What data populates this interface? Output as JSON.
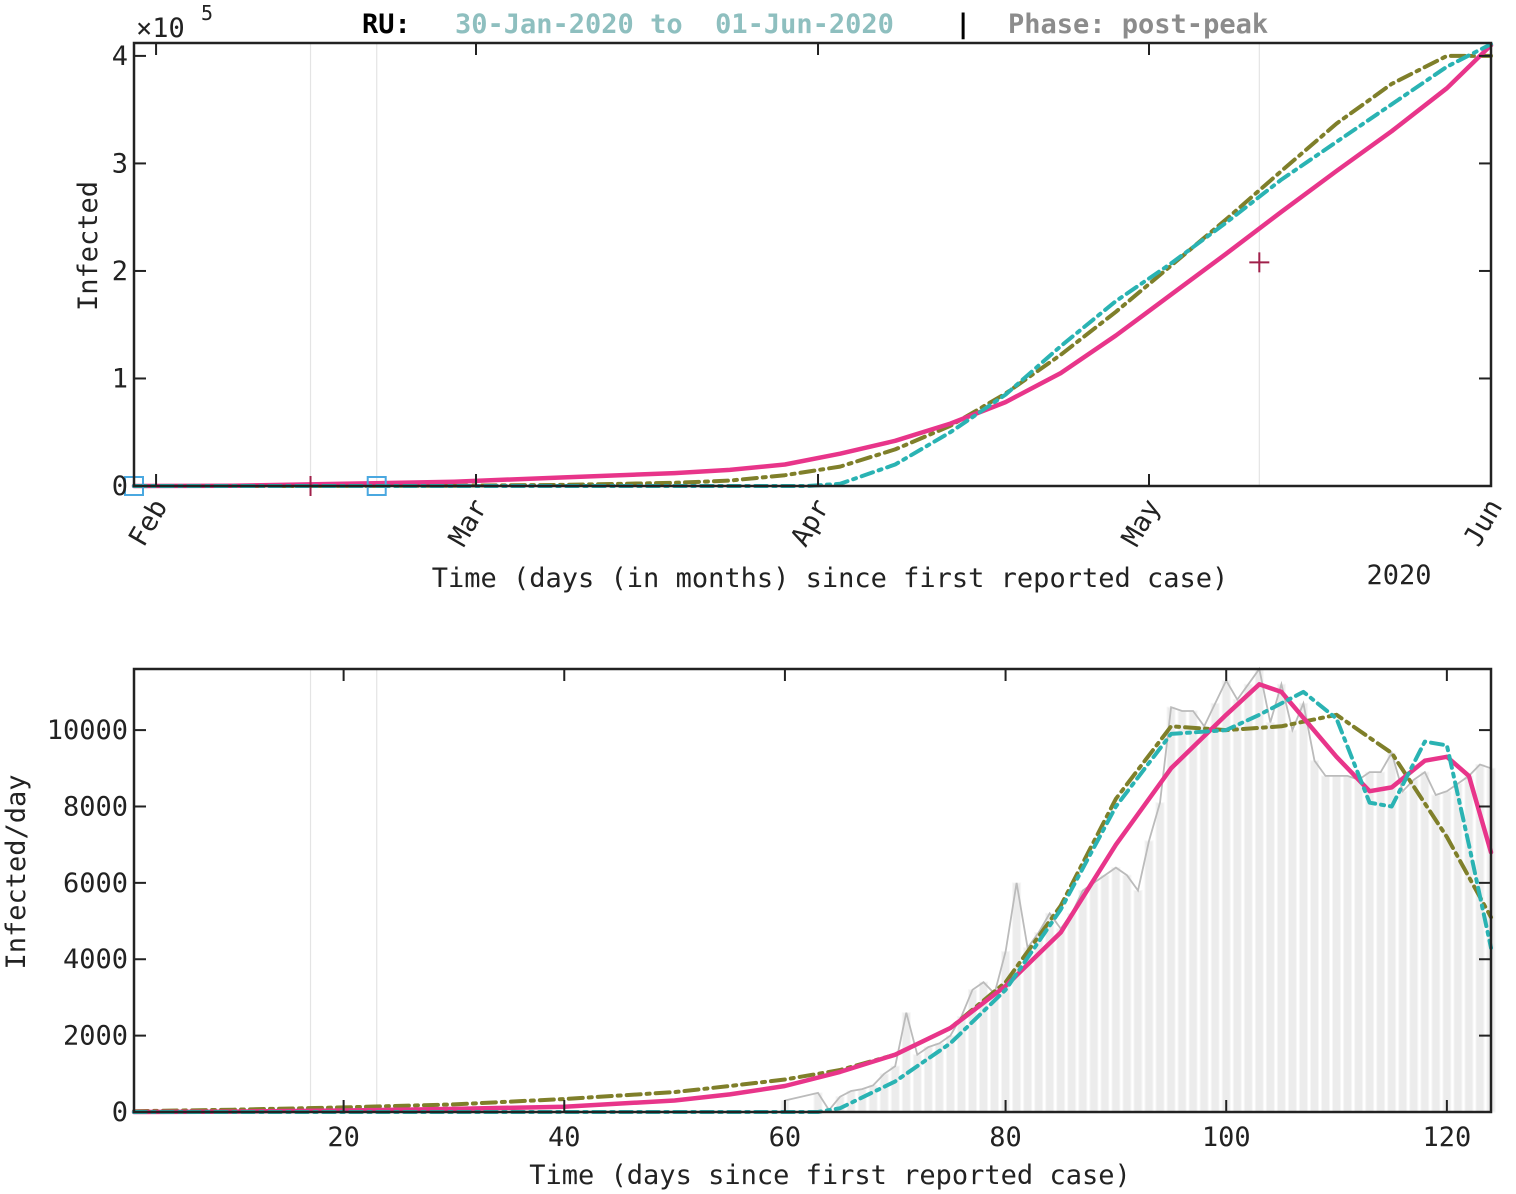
{
  "header": {
    "country": "RU:",
    "date_range": "30-Jan-2020 to  01-Jun-2020",
    "separator": "|",
    "phase": "Phase: post-peak"
  },
  "colors": {
    "magenta": "#e8358a",
    "teal": "#2ab3b3",
    "olive": "#7f7f2a",
    "gray": "#bbbbbb",
    "bar": "#ececec",
    "header_date": "#8ebfbf",
    "header_phase": "#8c8c8c",
    "marker": "#4aa8e0"
  },
  "chart_data": [
    {
      "type": "line",
      "ylabel": "Infected",
      "xlabel": "Time (days (in months) since first reported case)",
      "exponent_label": "×10",
      "exponent_power": "5",
      "year_label": "2020",
      "ylim": [
        0,
        4.12
      ],
      "xlim": [
        1,
        124
      ],
      "yticks": [
        "0",
        "1",
        "2",
        "3",
        "4"
      ],
      "month_ticks": [
        {
          "day": 3,
          "label": "Feb"
        },
        {
          "day": 32,
          "label": "Mar"
        },
        {
          "day": 63,
          "label": "Apr"
        },
        {
          "day": 93,
          "label": "May"
        },
        {
          "day": 124,
          "label": "Jun"
        }
      ],
      "grid_days": [
        17,
        23,
        103
      ],
      "markers": [
        {
          "day": 1,
          "value": 0,
          "shape": "square"
        },
        {
          "day": 23,
          "value": 0,
          "shape": "square"
        },
        {
          "day": 17,
          "value": 0,
          "shape": "tick"
        },
        {
          "day": 103,
          "value": 2.08,
          "shape": "plus"
        }
      ],
      "series": [
        {
          "x": [
            1,
            10,
            20,
            30,
            40,
            50,
            55,
            60,
            65,
            70,
            75,
            80,
            85,
            90,
            95,
            100,
            105,
            110,
            115,
            120,
            124
          ],
          "values": [
            0,
            0.003,
            0.02,
            0.04,
            0.08,
            0.12,
            0.15,
            0.2,
            0.3,
            0.42,
            0.58,
            0.78,
            1.05,
            1.4,
            1.78,
            2.16,
            2.55,
            2.93,
            3.3,
            3.7,
            4.1
          ]
        },
        {
          "x": [
            1,
            10,
            20,
            30,
            40,
            50,
            55,
            60,
            62,
            65,
            70,
            75,
            80,
            85,
            90,
            95,
            100,
            105,
            110,
            115,
            120,
            124
          ],
          "values": [
            0,
            0,
            0,
            0,
            0,
            0,
            0,
            0,
            0,
            0.02,
            0.2,
            0.5,
            0.85,
            1.3,
            1.72,
            2.07,
            2.45,
            2.85,
            3.2,
            3.55,
            3.9,
            4.11
          ]
        },
        {
          "x": [
            1,
            10,
            20,
            30,
            40,
            50,
            55,
            60,
            65,
            70,
            75,
            80,
            85,
            90,
            95,
            100,
            105,
            110,
            115,
            120,
            124
          ],
          "values": [
            0,
            0,
            0.001,
            0.003,
            0.01,
            0.03,
            0.05,
            0.1,
            0.18,
            0.34,
            0.56,
            0.86,
            1.22,
            1.62,
            2.05,
            2.48,
            2.93,
            3.37,
            3.74,
            4.0,
            4.0
          ]
        }
      ]
    },
    {
      "type": "line",
      "ylabel": "Infected/day",
      "xlabel": "Time (days since first reported case)",
      "ylim": [
        0,
        11600
      ],
      "xlim": [
        1,
        124
      ],
      "yticks": [
        0,
        2000,
        4000,
        6000,
        8000,
        10000
      ],
      "xticks": [
        20,
        40,
        60,
        80,
        100,
        120
      ],
      "grid_days": [
        17,
        23
      ],
      "raw_daily": {
        "x": [
          60,
          63,
          64,
          65,
          66,
          67,
          68,
          69,
          70,
          71,
          72,
          73,
          74,
          75,
          76,
          77,
          78,
          79,
          80,
          81,
          82,
          83,
          84,
          85,
          86,
          87,
          88,
          89,
          90,
          91,
          92,
          93,
          94,
          95,
          96,
          97,
          98,
          99,
          100,
          101,
          102,
          103,
          104,
          105,
          106,
          107,
          108,
          109,
          110,
          111,
          112,
          113,
          114,
          115,
          116,
          117,
          118,
          119,
          120,
          121,
          122,
          123,
          124
        ],
        "values": [
          300,
          500,
          50,
          400,
          550,
          600,
          700,
          1000,
          1200,
          2600,
          1500,
          1700,
          1800,
          2000,
          2500,
          3200,
          3400,
          3100,
          4200,
          6000,
          4300,
          4700,
          5200,
          4800,
          5200,
          5800,
          6000,
          6200,
          6400,
          6200,
          5800,
          7100,
          8100,
          10600,
          10500,
          10500,
          10100,
          10700,
          11300,
          10800,
          11200,
          11600,
          10200,
          11200,
          10000,
          10700,
          9200,
          8800,
          8800,
          8800,
          8700,
          8900,
          8900,
          9400,
          8400,
          8700,
          8900,
          8300,
          8400,
          8600,
          8800,
          9100,
          9000
        ]
      },
      "series": [
        {
          "x": [
            1,
            10,
            20,
            30,
            40,
            50,
            55,
            60,
            65,
            70,
            75,
            80,
            85,
            90,
            95,
            100,
            103,
            105,
            110,
            113,
            115,
            118,
            120,
            122,
            124
          ],
          "values": [
            0,
            10,
            40,
            80,
            140,
            300,
            460,
            680,
            1050,
            1500,
            2200,
            3300,
            4700,
            7000,
            9000,
            10400,
            11200,
            11000,
            9300,
            8400,
            8500,
            9200,
            9300,
            8800,
            6800
          ]
        },
        {
          "x": [
            1,
            10,
            20,
            30,
            40,
            50,
            55,
            60,
            63,
            65,
            70,
            75,
            80,
            85,
            90,
            95,
            100,
            103,
            107,
            110,
            113,
            115,
            118,
            120,
            122,
            124
          ],
          "values": [
            0,
            0,
            0,
            0,
            0,
            0,
            0,
            0,
            0,
            100,
            800,
            1800,
            3200,
            5300,
            8000,
            9900,
            10000,
            10400,
            11000,
            10300,
            8100,
            8000,
            9700,
            9600,
            7000,
            4300
          ]
        },
        {
          "x": [
            1,
            10,
            20,
            30,
            40,
            50,
            55,
            60,
            65,
            70,
            75,
            80,
            85,
            90,
            95,
            100,
            105,
            110,
            115,
            120,
            124
          ],
          "values": [
            20,
            60,
            120,
            200,
            340,
            520,
            680,
            850,
            1100,
            1500,
            2200,
            3400,
            5400,
            8200,
            10100,
            10000,
            10100,
            10400,
            9400,
            7200,
            5100
          ]
        }
      ]
    }
  ]
}
